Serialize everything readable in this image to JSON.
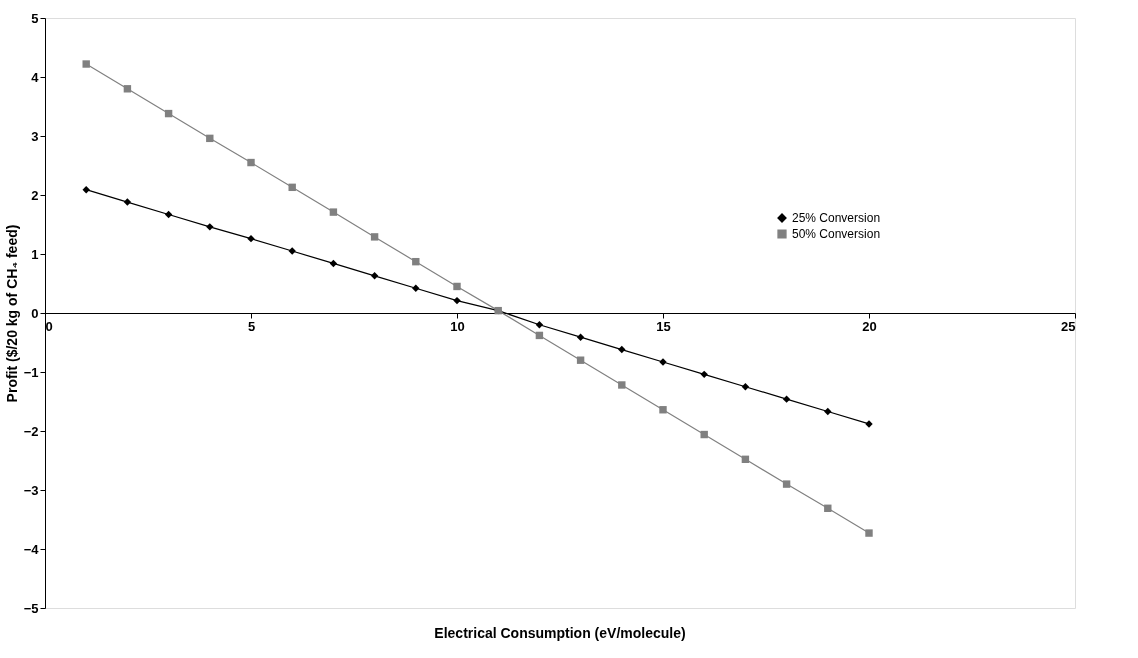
{
  "chart_data": {
    "type": "line",
    "xlabel": "Electrical Consumption (eV/molecule)",
    "ylabel": "Profit ($/20 kg of CH₄ feed)",
    "x": [
      1,
      2,
      3,
      4,
      5,
      6,
      7,
      8,
      9,
      10,
      11,
      12,
      13,
      14,
      15,
      16,
      17,
      18,
      19,
      20
    ],
    "series": [
      {
        "name": "25% Conversion",
        "color": "#000000",
        "marker": "diamond",
        "values": [
          2.09,
          1.88,
          1.67,
          1.46,
          1.26,
          1.05,
          0.84,
          0.63,
          0.42,
          0.21,
          0.04,
          -0.2,
          -0.41,
          -0.62,
          -0.83,
          -1.04,
          -1.25,
          -1.46,
          -1.67,
          -1.88
        ]
      },
      {
        "name": "50% Conversion",
        "color": "#808080",
        "marker": "square",
        "values": [
          4.22,
          3.8,
          3.38,
          2.96,
          2.55,
          2.13,
          1.71,
          1.29,
          0.87,
          0.45,
          0.04,
          -0.38,
          -0.8,
          -1.22,
          -1.64,
          -2.06,
          -2.48,
          -2.9,
          -3.31,
          -3.73
        ]
      }
    ],
    "xlim": [
      0,
      25
    ],
    "xticks": [
      0,
      5,
      10,
      15,
      20,
      25
    ],
    "ylim": [
      -5,
      5
    ],
    "yticks": [
      -5,
      -4,
      -3,
      -2,
      -1,
      0,
      1,
      2,
      3,
      4,
      5
    ],
    "grid": false,
    "legend": "top right",
    "line_style": "solid"
  }
}
